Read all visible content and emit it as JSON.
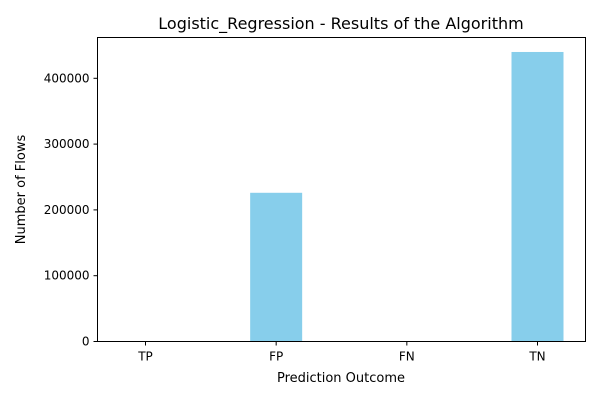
{
  "chart_data": {
    "type": "bar",
    "title": "Logistic_Regression - Results of the Algorithm",
    "xlabel": "Prediction Outcome",
    "ylabel": "Number of Flows",
    "categories": [
      "TP",
      "FP",
      "FN",
      "TN"
    ],
    "values": [
      0,
      226000,
      0,
      440000
    ],
    "ylim": [
      0,
      462000
    ],
    "yticks": [
      0,
      100000,
      200000,
      300000,
      400000
    ],
    "bar_color": "#87ceeb",
    "grid": false,
    "legend": "none"
  }
}
